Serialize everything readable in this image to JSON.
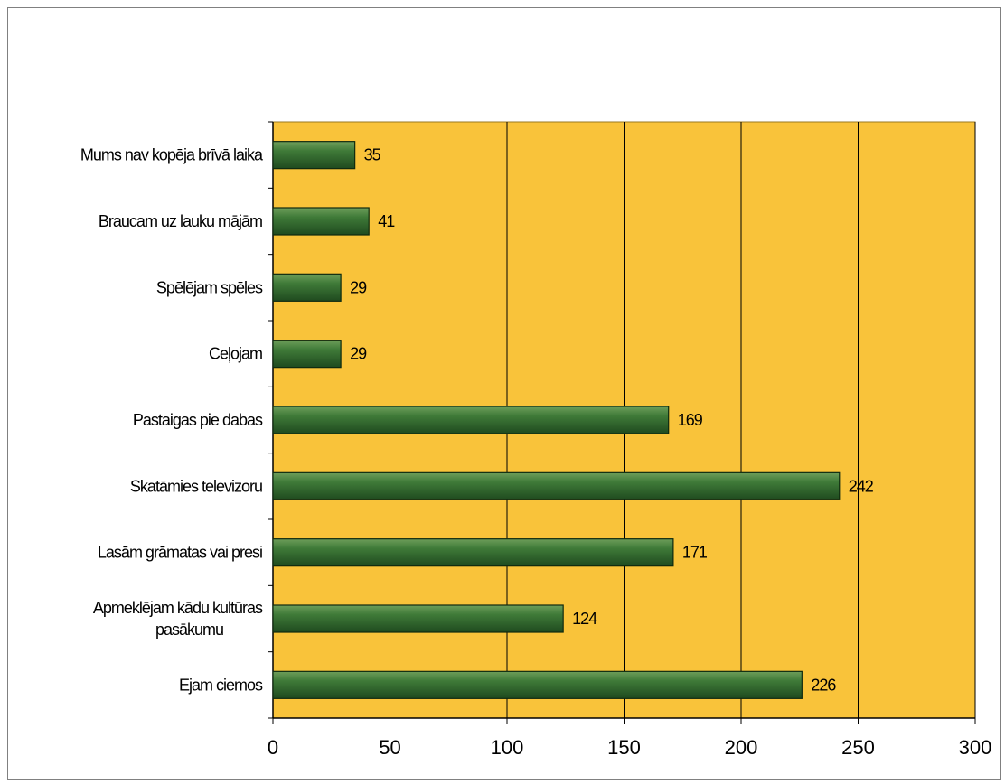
{
  "chart_data": {
    "type": "bar",
    "orientation": "horizontal",
    "categories": [
      "Mums nav kopēja brīvā laika",
      "Braucam uz lauku mājām",
      "Spēlējam spēles",
      "Ceļojam",
      "Pastaigas pie dabas",
      "Skatāmies televizoru",
      "Lasām grāmatas vai presi",
      "Apmeklējam kādu kultūras pasākumu",
      "Ejam ciemos"
    ],
    "values": [
      35,
      41,
      29,
      29,
      169,
      242,
      171,
      124,
      226
    ],
    "xlim": [
      0,
      300
    ],
    "xticks": [
      0,
      50,
      100,
      150,
      200,
      250,
      300
    ],
    "grid": "vertical",
    "plot_background": "#F9C33A",
    "bar_color": "#2E6B2E",
    "title": "",
    "xlabel": "",
    "ylabel": ""
  }
}
